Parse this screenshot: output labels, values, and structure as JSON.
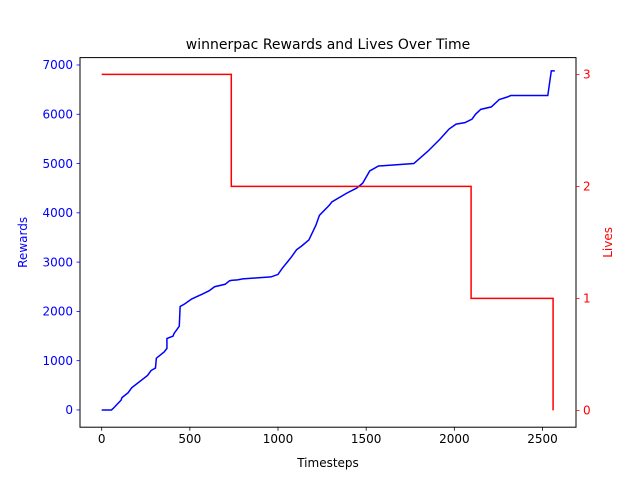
{
  "chart_data": {
    "type": "line",
    "title": "winnerpac Rewards and Lives Over Time",
    "xlabel": "Timesteps",
    "xlim": [
      -123,
      2690
    ],
    "xticks": [
      0,
      500,
      1000,
      1500,
      2000,
      2500
    ],
    "left_axis": {
      "label": "Rewards",
      "color": "#0000ff",
      "ylim": [
        -350,
        7150
      ],
      "ticks": [
        0,
        1000,
        2000,
        3000,
        4000,
        5000,
        6000,
        7000
      ]
    },
    "right_axis": {
      "label": "Lives",
      "color": "#ff0000",
      "ylim": [
        -0.15,
        3.15
      ],
      "ticks": [
        0,
        1,
        2,
        3
      ]
    },
    "series": [
      {
        "axis": "left",
        "color": "#0000ff",
        "x": [
          0,
          55,
          65,
          110,
          115,
          150,
          170,
          260,
          280,
          305,
          310,
          355,
          370,
          370,
          405,
          410,
          430,
          440,
          445,
          470,
          490,
          510,
          540,
          570,
          610,
          640,
          700,
          725,
          735,
          770,
          800,
          880,
          960,
          1000,
          1025,
          1055,
          1075,
          1105,
          1135,
          1175,
          1195,
          1215,
          1235,
          1290,
          1305,
          1390,
          1445,
          1480,
          1520,
          1570,
          1770,
          1850,
          1920,
          1950,
          1970,
          2010,
          2060,
          2100,
          2120,
          2150,
          2210,
          2225,
          2255,
          2300,
          2320,
          2370,
          2530,
          2550,
          2570
        ],
        "values": [
          0,
          0,
          30,
          200,
          250,
          350,
          450,
          700,
          800,
          850,
          1050,
          1180,
          1250,
          1450,
          1500,
          1550,
          1650,
          1700,
          2100,
          2150,
          2200,
          2250,
          2300,
          2350,
          2420,
          2500,
          2550,
          2620,
          2630,
          2640,
          2660,
          2680,
          2700,
          2750,
          2880,
          3010,
          3100,
          3250,
          3330,
          3450,
          3600,
          3750,
          3950,
          4150,
          4220,
          4400,
          4500,
          4600,
          4850,
          4950,
          5000,
          5250,
          5500,
          5620,
          5700,
          5800,
          5830,
          5900,
          6000,
          6100,
          6150,
          6200,
          6300,
          6350,
          6380,
          6380,
          6380,
          6880,
          6880
        ]
      },
      {
        "axis": "right",
        "color": "#ff0000",
        "x": [
          0,
          735,
          735,
          2095,
          2095,
          2560,
          2560
        ],
        "values": [
          3,
          3,
          2,
          2,
          1,
          1,
          0
        ]
      }
    ]
  }
}
